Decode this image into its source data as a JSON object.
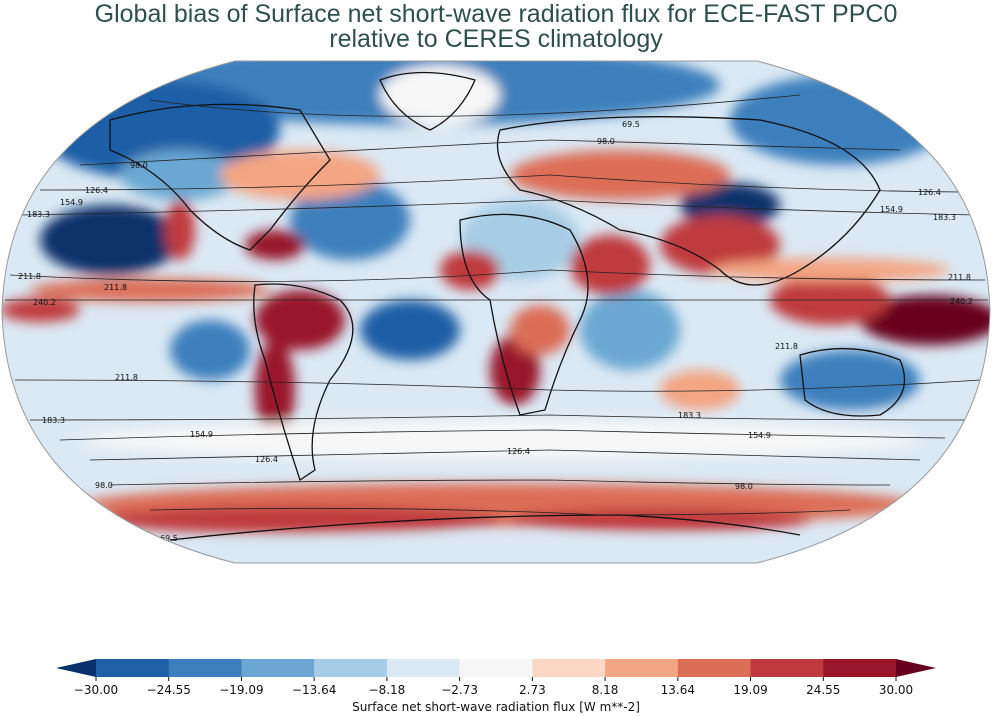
{
  "title": {
    "line1": "Global bias of Surface net short-wave radiation flux for ECE-FAST PPC0",
    "line2": "relative to CERES climatology"
  },
  "colorbar": {
    "label": "Surface net short-wave radiation flux [W m**-2]",
    "ticks": [
      "−30.00",
      "−24.55",
      "−19.09",
      "−13.64",
      "−8.18",
      "−2.73",
      "2.73",
      "8.18",
      "13.64",
      "19.09",
      "24.55",
      "30.00"
    ],
    "colors": [
      "#08306b",
      "#1f5fa6",
      "#3c7fbd",
      "#6ba7d2",
      "#a7cde6",
      "#dbe9f4",
      "#f7f7f7",
      "#fbd7c4",
      "#f4a583",
      "#dc6e58",
      "#c03a3d",
      "#99162a",
      "#67001f"
    ]
  },
  "contour_labels": [
    "69.5",
    "98.0",
    "126.4",
    "154.9",
    "183.3",
    "211.8",
    "240.2"
  ],
  "map_colors": {
    "neutral": "#f2f5f7",
    "outline": "#999999"
  }
}
